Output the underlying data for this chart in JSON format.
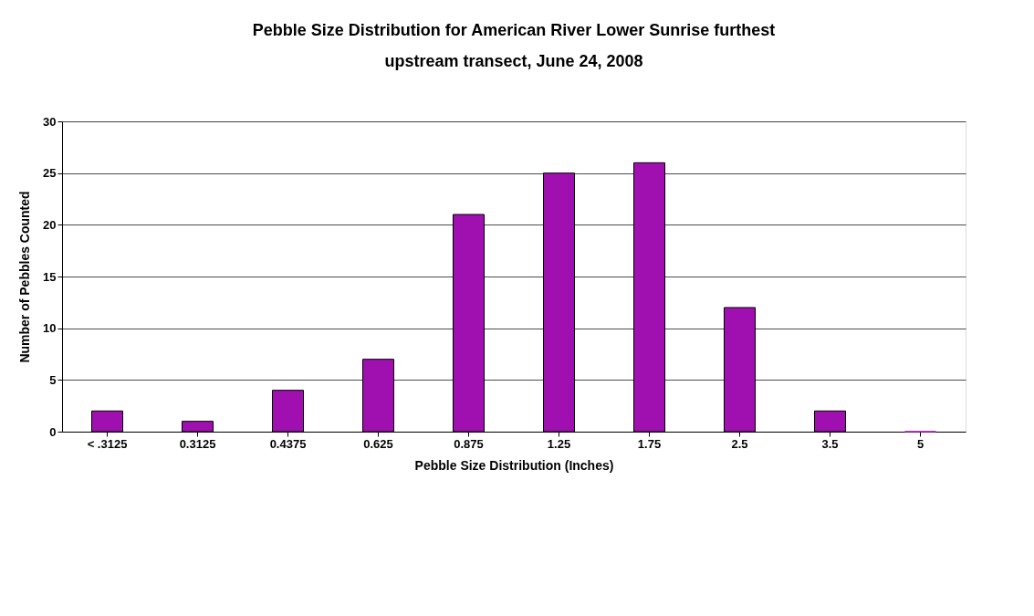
{
  "chart_data": {
    "type": "bar",
    "title": "Pebble Size Distribution for American River Lower Sunrise furthest upstream transect,  June 24, 2008",
    "xlabel": "Pebble Size Distribution (Inches)",
    "ylabel": "Number of Pebbles Counted",
    "categories": [
      "< .3125",
      "0.3125",
      "0.4375",
      "0.625",
      "0.875",
      "1.25",
      "1.75",
      "2.5",
      "3.5",
      "5"
    ],
    "values": [
      2,
      1,
      4,
      7,
      21,
      25,
      26,
      12,
      2,
      0
    ],
    "color": "#a010b0",
    "ylim": [
      0,
      30
    ],
    "yticks": [
      0,
      5,
      10,
      15,
      20,
      25,
      30
    ],
    "grid": "y"
  }
}
